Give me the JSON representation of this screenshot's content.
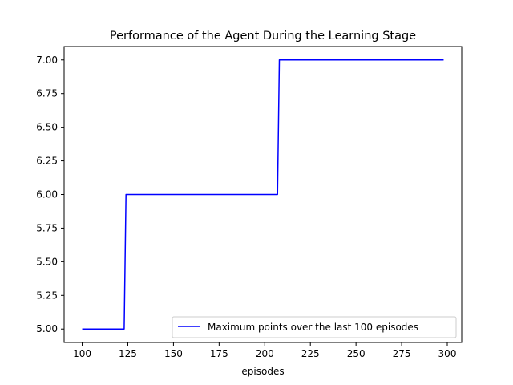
{
  "chart_data": {
    "type": "line",
    "title": "Performance of the Agent During the Learning Stage",
    "xlabel": "episodes",
    "ylabel": "",
    "xlim": [
      90.1,
      307.9
    ],
    "ylim": [
      4.9,
      7.1
    ],
    "xticks": [
      100,
      125,
      150,
      175,
      200,
      225,
      250,
      275,
      300
    ],
    "yticks": [
      5.0,
      5.25,
      5.5,
      5.75,
      6.0,
      6.25,
      6.5,
      6.75,
      7.0
    ],
    "ytick_labels": [
      "5.00",
      "5.25",
      "5.50",
      "5.75",
      "6.00",
      "6.25",
      "6.50",
      "6.75",
      "7.00"
    ],
    "grid": false,
    "legend_position": "lower right",
    "series": [
      {
        "name": "Maximum points over the last 100 episodes",
        "color": "#0000ff",
        "x": [
          100,
          123,
          124,
          207,
          208,
          298
        ],
        "y": [
          5,
          5,
          6,
          6,
          7,
          7
        ]
      }
    ]
  }
}
